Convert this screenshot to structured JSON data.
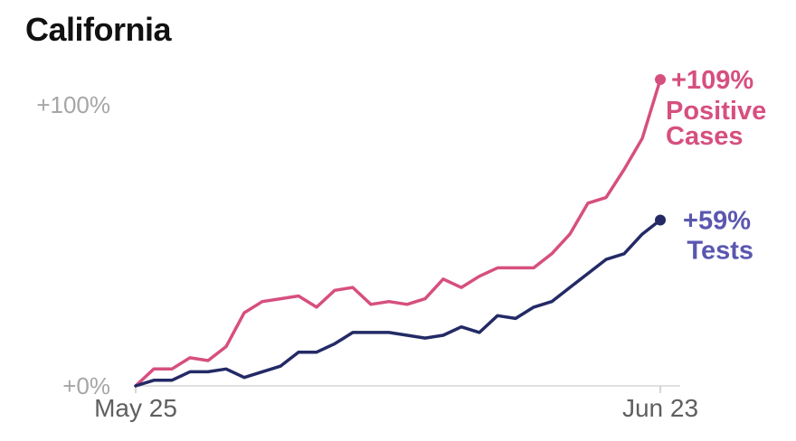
{
  "title": "California",
  "chart_data": {
    "type": "line",
    "title": "California",
    "xlabel": "",
    "ylabel": "",
    "x_start": "2020-05-25",
    "x_end": "2020-06-23",
    "x_tick_labels": [
      "May 25",
      "Jun 23"
    ],
    "y_tick_labels": [
      "+0%",
      "+100%"
    ],
    "ylim": [
      0,
      110
    ],
    "grid": false,
    "colors": {
      "positive": "#d64f7f",
      "tests": "#232a66",
      "tests_label": "#5a57b0"
    },
    "series": [
      {
        "name": "Positive Cases",
        "end_label_value": "+109%",
        "end_label_name": [
          "Positive",
          "Cases"
        ],
        "values": [
          0,
          6,
          6,
          10,
          9,
          14,
          26,
          30,
          31,
          32,
          28,
          34,
          35,
          29,
          30,
          29,
          31,
          38,
          35,
          39,
          42,
          42,
          42,
          47,
          54,
          65,
          67,
          77,
          88,
          109
        ]
      },
      {
        "name": "Tests",
        "end_label_value": "+59%",
        "end_label_name": [
          "Tests"
        ],
        "values": [
          0,
          2,
          2,
          5,
          5,
          6,
          3,
          5,
          7,
          12,
          12,
          15,
          19,
          19,
          19,
          18,
          17,
          18,
          21,
          19,
          25,
          24,
          28,
          30,
          35,
          40,
          45,
          47,
          54,
          59
        ]
      }
    ]
  }
}
